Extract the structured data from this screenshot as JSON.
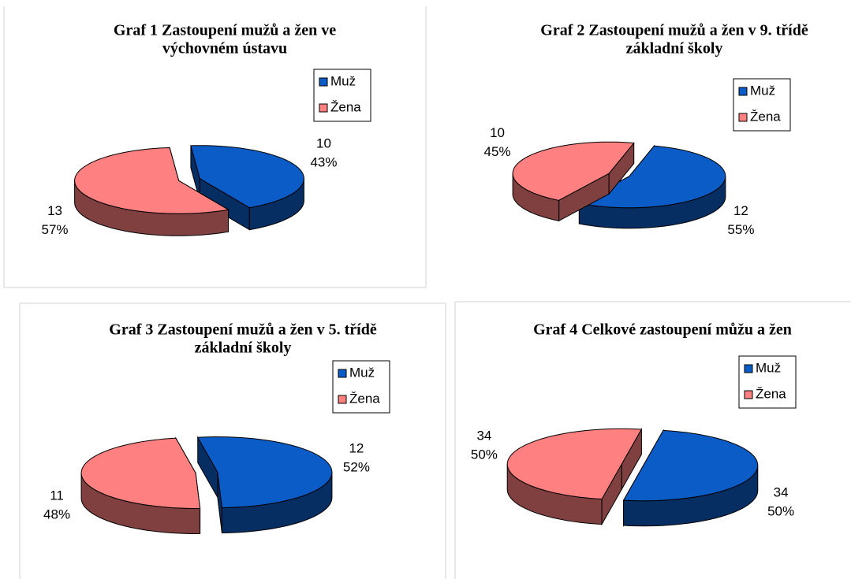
{
  "chart_data": [
    {
      "type": "pie",
      "title": [
        "Graf 1  Zastoupení mužů a žen ve",
        "výchovném ústavu"
      ],
      "categories": [
        "Muž",
        "Žena"
      ],
      "values": [
        10,
        13
      ],
      "percent_labels": [
        "43%",
        "57%"
      ],
      "colors": [
        "#0b5cc6",
        "#ff8080"
      ]
    },
    {
      "type": "pie",
      "title": [
        "Graf 2  Zastoupení mužů a žen v 9. třídě",
        "základní školy"
      ],
      "categories": [
        "Muž",
        "Žena"
      ],
      "values": [
        12,
        10
      ],
      "percent_labels": [
        "55%",
        "45%"
      ],
      "colors": [
        "#0b5cc6",
        "#ff8080"
      ]
    },
    {
      "type": "pie",
      "title": [
        "Graf 3  Zastoupení mužů a žen v 5. třídě",
        "základní školy"
      ],
      "categories": [
        "Muž",
        "Žena"
      ],
      "values": [
        12,
        11
      ],
      "percent_labels": [
        "52%",
        "48%"
      ],
      "colors": [
        "#0b5cc6",
        "#ff8080"
      ]
    },
    {
      "type": "pie",
      "title": [
        "Graf 4  Celkové zastoupení můžu a žen"
      ],
      "categories": [
        "Muž",
        "Žena"
      ],
      "values": [
        34,
        34
      ],
      "percent_labels": [
        "50%",
        "50%"
      ],
      "colors": [
        "#0b5cc6",
        "#ff8080"
      ]
    }
  ]
}
